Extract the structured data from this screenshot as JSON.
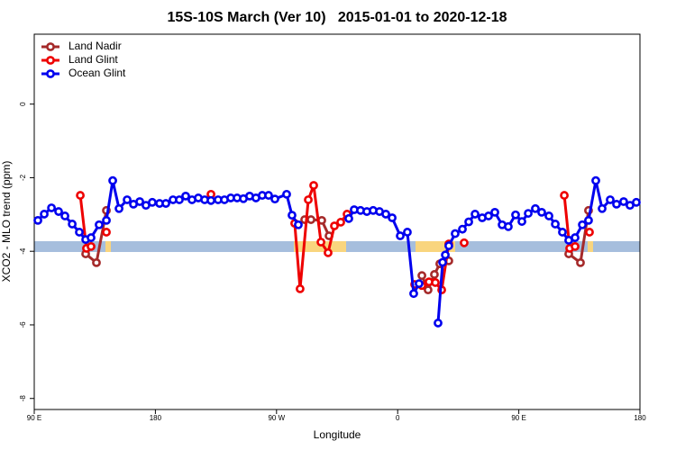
{
  "chart_data": {
    "type": "line",
    "title": "15S-10S March (Ver 10)   2015-01-01 to 2020-12-18",
    "x_label": "Longitude",
    "y_label": "XCO2 - MLO trend (ppm)",
    "xlim": [
      90,
      540
    ],
    "ylim": [
      -8.3,
      1.9
    ],
    "xticks": [
      {
        "value": 90,
        "label": "90 E"
      },
      {
        "value": 180,
        "label": "180"
      },
      {
        "value": 270,
        "label": "90 W"
      },
      {
        "value": 360,
        "label": "0"
      },
      {
        "value": 450,
        "label": "90 E"
      },
      {
        "value": 540,
        "label": "180"
      }
    ],
    "yticks": [
      0,
      -2,
      -4,
      -6,
      -8
    ],
    "legend": "top-left",
    "series": [
      {
        "name": "Land Nadir",
        "color": "#a52a2a",
        "x": [
          128.2,
          136.2,
          143.6,
          null,
          290.9,
          295.6,
          303.6,
          309.0,
          null,
          378.0,
          382.6,
          387.3,
          391.3,
          398.0,
          null,
          487.1,
          495.8,
          501.8
        ],
        "values": [
          -4.07,
          -4.31,
          -2.89,
          null,
          -3.14,
          -3.14,
          -3.16,
          -3.58,
          null,
          -4.66,
          -5.05,
          -4.63,
          -4.34,
          -4.26,
          null,
          -4.07,
          -4.31,
          -2.89
        ]
      },
      {
        "name": "Land Glint",
        "color": "#ee0000",
        "x": [
          124.2,
          128.8,
          132.2,
          null,
          143.6,
          null,
          221.3,
          null,
          283.5,
          287.5,
          293.6,
          297.6,
          303.0,
          308.3,
          313.0,
          317.7,
          322.4,
          null,
          372.6,
          378.0,
          383.3,
          388.0,
          392.7,
          398.0,
          null,
          409.4,
          null,
          483.8,
          487.8,
          491.8,
          null,
          502.5
        ],
        "values": [
          -2.48,
          -3.92,
          -3.87,
          null,
          -3.48,
          null,
          -2.45,
          null,
          -3.24,
          -5.02,
          -2.6,
          -2.21,
          -3.75,
          -4.04,
          -3.31,
          -3.21,
          -2.99,
          null,
          -4.9,
          -4.93,
          -4.83,
          -4.85,
          -5.05,
          -3.8,
          null,
          -3.77,
          null,
          -2.48,
          -3.92,
          -3.87,
          null,
          -3.48
        ]
      },
      {
        "name": "Ocean Glint",
        "color": "#0000ee",
        "x": [
          92.7,
          97.4,
          102.8,
          108.1,
          112.8,
          118.2,
          123.5,
          128.2,
          132.2,
          138.2,
          143.6,
          148.3,
          153.0,
          159.0,
          163.7,
          168.4,
          173.0,
          177.7,
          183.1,
          187.8,
          193.1,
          197.8,
          202.5,
          207.2,
          211.9,
          216.6,
          221.3,
          226.6,
          231.3,
          236.0,
          240.7,
          245.4,
          250.0,
          254.7,
          259.4,
          264.1,
          268.8,
          277.5,
          281.5,
          286.2,
          null,
          323.7,
          327.7,
          332.4,
          337.1,
          341.8,
          346.5,
          351.2,
          355.9,
          361.9,
          367.2,
          371.9,
          375.9,
          null,
          390.0,
          393.4,
          395.4,
          398.0,
          402.7,
          408.1,
          412.8,
          417.5,
          422.8,
          427.5,
          432.2,
          437.6,
          442.2,
          447.6,
          452.3,
          457.0,
          462.3,
          467.0,
          472.4,
          477.1,
          482.4,
          487.1,
          491.8,
          497.2,
          501.8,
          507.2,
          511.9,
          517.9,
          522.6,
          527.9,
          532.6,
          537.3
        ],
        "values": [
          -3.16,
          -2.99,
          -2.82,
          -2.92,
          -3.04,
          -3.26,
          -3.48,
          -3.68,
          -3.63,
          -3.28,
          -3.16,
          -2.08,
          -2.84,
          -2.6,
          -2.72,
          -2.65,
          -2.75,
          -2.67,
          -2.7,
          -2.7,
          -2.6,
          -2.6,
          -2.5,
          -2.6,
          -2.55,
          -2.6,
          -2.62,
          -2.6,
          -2.6,
          -2.55,
          -2.55,
          -2.57,
          -2.5,
          -2.55,
          -2.48,
          -2.48,
          -2.58,
          -2.45,
          -3.02,
          -3.28,
          null,
          -3.11,
          -2.87,
          -2.89,
          -2.92,
          -2.89,
          -2.92,
          -2.99,
          -3.09,
          -3.58,
          -3.48,
          -5.15,
          -4.88,
          null,
          -5.95,
          -4.3,
          -4.1,
          -3.85,
          -3.52,
          -3.4,
          -3.2,
          -2.99,
          -3.09,
          -3.04,
          -2.94,
          -3.28,
          -3.33,
          -3.01,
          -3.19,
          -2.97,
          -2.84,
          -2.94,
          -3.04,
          -3.26,
          -3.48,
          -3.7,
          -3.63,
          -3.28,
          -3.16,
          -2.08,
          -2.84,
          -2.6,
          -2.72,
          -2.65,
          -2.75,
          -2.67
        ]
      }
    ]
  }
}
